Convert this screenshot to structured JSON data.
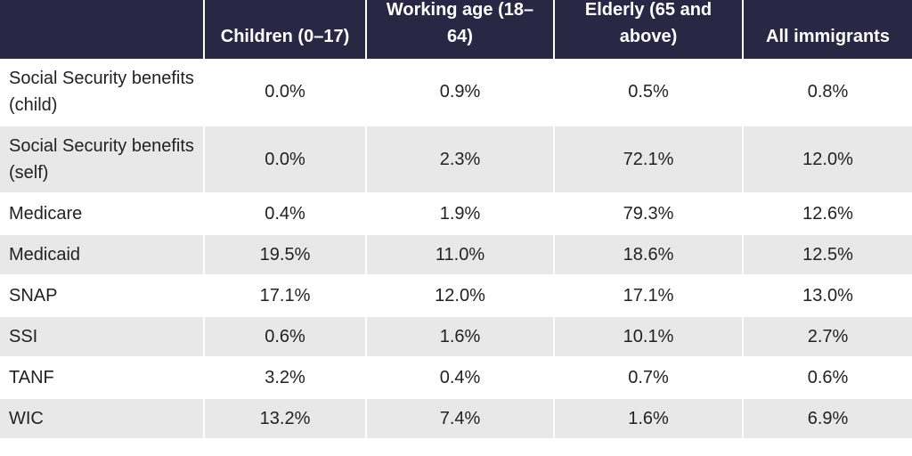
{
  "header": {
    "col0": "",
    "col1": "Children (0–17)",
    "col2": "Working age (18–64)",
    "col3": "Elderly (65 and above)",
    "col4": "All immigrants"
  },
  "rows": [
    {
      "label": "Social Security benefits (child)",
      "children": "0.0%",
      "working": "0.9%",
      "elderly": "0.5%",
      "all": "0.8%"
    },
    {
      "label": "Social Security benefits (self)",
      "children": "0.0%",
      "working": "2.3%",
      "elderly": "72.1%",
      "all": "12.0%"
    },
    {
      "label": "Medicare",
      "children": "0.4%",
      "working": "1.9%",
      "elderly": "79.3%",
      "all": "12.6%"
    },
    {
      "label": "Medicaid",
      "children": "19.5%",
      "working": "11.0%",
      "elderly": "18.6%",
      "all": "12.5%"
    },
    {
      "label": "SNAP",
      "children": "17.1%",
      "working": "12.0%",
      "elderly": "17.1%",
      "all": "13.0%"
    },
    {
      "label": "SSI",
      "children": "0.6%",
      "working": "1.6%",
      "elderly": "10.1%",
      "all": "2.7%"
    },
    {
      "label": "TANF",
      "children": "3.2%",
      "working": "0.4%",
      "elderly": "0.7%",
      "all": "0.6%"
    },
    {
      "label": "WIC",
      "children": "13.2%",
      "working": "7.4%",
      "elderly": "1.6%",
      "all": "6.9%"
    }
  ]
}
